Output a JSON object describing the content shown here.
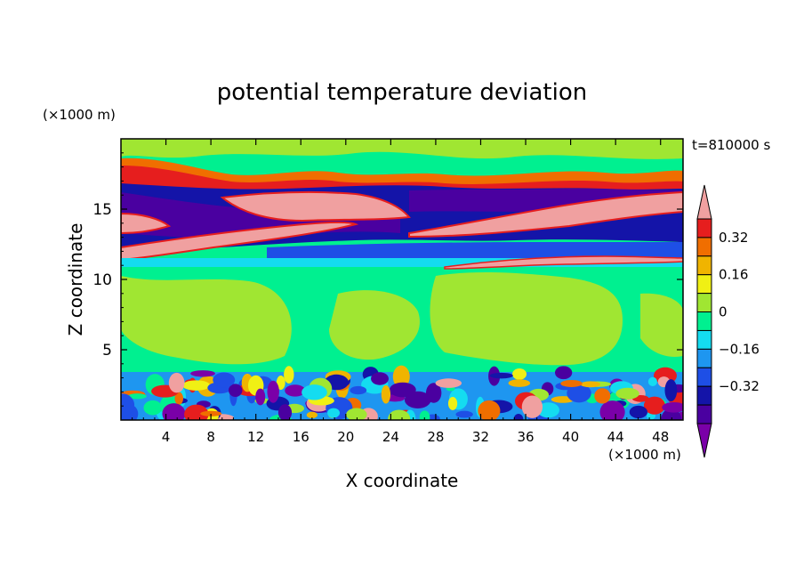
{
  "chart_data": {
    "type": "heatmap",
    "title": "potential temperature deviation",
    "xlabel": "X coordinate",
    "ylabel": "Z coordinate",
    "x_unit": "(×1000 m)",
    "y_unit": "(×1000 m)",
    "time_label": "t=810000 s",
    "xlim": [
      0,
      50
    ],
    "ylim": [
      0,
      20
    ],
    "x_ticks": [
      4,
      8,
      12,
      16,
      20,
      24,
      28,
      32,
      36,
      40,
      44,
      48
    ],
    "y_ticks": [
      5,
      10,
      15
    ],
    "colorbar": {
      "levels": [
        -0.48,
        -0.4,
        -0.32,
        -0.24,
        -0.16,
        -0.08,
        0,
        0.08,
        0.16,
        0.24,
        0.32,
        0.4
      ],
      "colors": [
        "#7a00a8",
        "#4a00a0",
        "#1414a8",
        "#1e4fe6",
        "#1e96f0",
        "#14dcf0",
        "#00f090",
        "#a0e632",
        "#f0f014",
        "#f0b400",
        "#f06e00",
        "#e61e1e",
        "#f0a0a0"
      ],
      "tick_labels": [
        "0.32",
        "0.16",
        "0",
        "−0.16",
        "−0.32"
      ],
      "tick_values": [
        0.32,
        0.16,
        0,
        -0.16,
        -0.32
      ]
    },
    "bands": [
      {
        "z_range": [
          0,
          3.5
        ],
        "description_level": "mixed",
        "levels": [
          -0.4,
          0.4
        ]
      },
      {
        "z_range": [
          3.5,
          11.2
        ],
        "level": 0.04
      },
      {
        "z_range": [
          11.2,
          12.2
        ],
        "level": -0.2
      },
      {
        "z_range": [
          12.2,
          15.8
        ],
        "level": -0.36
      },
      {
        "z_range": [
          15.8,
          18
        ],
        "level": 0.3
      },
      {
        "z_range": [
          18,
          20
        ],
        "level": 0.02
      }
    ]
  }
}
